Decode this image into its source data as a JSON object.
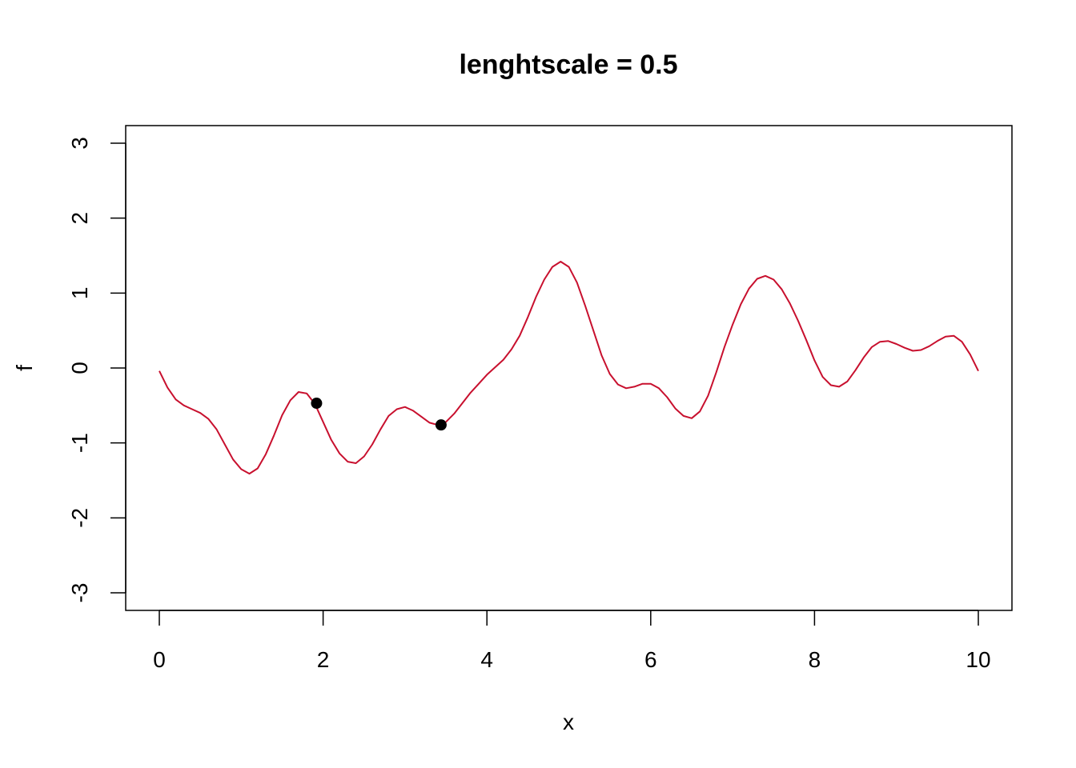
{
  "chart_data": {
    "type": "line",
    "title": "lenghtscale = 0.5",
    "xlabel": "x",
    "ylabel": "f",
    "xlim": [
      0,
      10
    ],
    "ylim": [
      -3,
      3
    ],
    "x_ticks": [
      "0",
      "2",
      "4",
      "6",
      "8",
      "10"
    ],
    "y_ticks": [
      "-3",
      "-2",
      "-1",
      "0",
      "1",
      "2",
      "3"
    ],
    "grid": false,
    "legend": "none",
    "colors": {
      "line": "#c8102e",
      "points": "#000000",
      "axes": "#000000"
    },
    "series": [
      {
        "x": [
          0,
          0.1,
          0.2,
          0.3,
          0.4,
          0.5,
          0.6,
          0.7,
          0.8,
          0.9,
          1.0,
          1.1,
          1.2,
          1.3,
          1.4,
          1.5,
          1.6,
          1.7,
          1.8,
          1.9,
          2.0,
          2.1,
          2.2,
          2.3,
          2.4,
          2.5,
          2.6,
          2.7,
          2.8,
          2.9,
          3.0,
          3.1,
          3.2,
          3.3,
          3.4,
          3.5,
          3.6,
          3.7,
          3.8,
          3.9,
          4.0,
          4.1,
          4.2,
          4.3,
          4.4,
          4.5,
          4.6,
          4.7,
          4.8,
          4.9,
          5.0,
          5.1,
          5.2,
          5.3,
          5.4,
          5.5,
          5.6,
          5.7,
          5.8,
          5.9,
          6.0,
          6.1,
          6.2,
          6.3,
          6.4,
          6.5,
          6.6,
          6.7,
          6.8,
          6.9,
          7.0,
          7.1,
          7.2,
          7.3,
          7.4,
          7.5,
          7.6,
          7.7,
          7.8,
          7.9,
          8.0,
          8.1,
          8.2,
          8.3,
          8.4,
          8.5,
          8.6,
          8.7,
          8.8,
          8.9,
          9.0,
          9.1,
          9.2,
          9.3,
          9.4,
          9.5,
          9.6,
          9.7,
          9.8,
          9.9,
          10.0
        ],
        "values": [
          -0.04,
          -0.26,
          -0.42,
          -0.5,
          -0.55,
          -0.6,
          -0.68,
          -0.82,
          -1.02,
          -1.22,
          -1.35,
          -1.41,
          -1.34,
          -1.15,
          -0.9,
          -0.63,
          -0.43,
          -0.32,
          -0.34,
          -0.48,
          -0.72,
          -0.96,
          -1.14,
          -1.25,
          -1.27,
          -1.18,
          -1.02,
          -0.82,
          -0.64,
          -0.55,
          -0.52,
          -0.57,
          -0.65,
          -0.73,
          -0.76,
          -0.72,
          -0.61,
          -0.47,
          -0.33,
          -0.21,
          -0.09,
          0.01,
          0.11,
          0.25,
          0.43,
          0.68,
          0.95,
          1.18,
          1.35,
          1.42,
          1.35,
          1.14,
          0.83,
          0.5,
          0.17,
          -0.08,
          -0.22,
          -0.27,
          -0.25,
          -0.21,
          -0.21,
          -0.27,
          -0.39,
          -0.54,
          -0.64,
          -0.67,
          -0.58,
          -0.37,
          -0.06,
          0.28,
          0.58,
          0.85,
          1.06,
          1.19,
          1.23,
          1.18,
          1.05,
          0.86,
          0.63,
          0.37,
          0.1,
          -0.12,
          -0.23,
          -0.25,
          -0.18,
          -0.03,
          0.14,
          0.28,
          0.35,
          0.36,
          0.32,
          0.27,
          0.23,
          0.24,
          0.29,
          0.36,
          0.42,
          0.43,
          0.35,
          0.18,
          -0.04
        ]
      }
    ],
    "points": [
      {
        "x": 1.92,
        "y": -0.47
      },
      {
        "x": 3.44,
        "y": -0.76
      }
    ]
  }
}
